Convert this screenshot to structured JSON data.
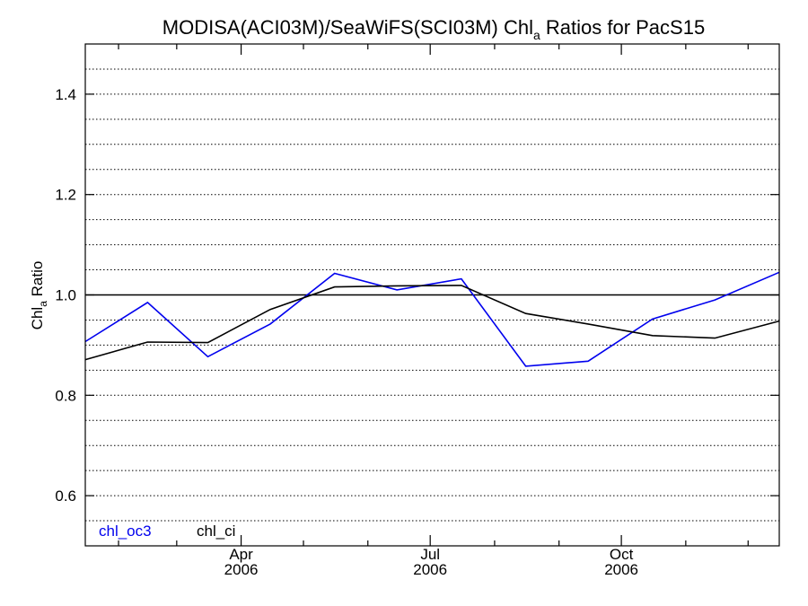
{
  "chart_data": {
    "type": "line",
    "title": {
      "prefix": "MODISA(ACI03M)/SeaWiFS(SCI03M)  Chl",
      "subscript": "a",
      "suffix": " Ratios for PacS15"
    },
    "ylabel": {
      "prefix": "Chl",
      "subscript": "a",
      "suffix": " Ratio"
    },
    "xlabel": "",
    "ylim": [
      0.5,
      1.5
    ],
    "xlim": [
      "2006-01-16",
      "2006-12-16"
    ],
    "y_ticks": [
      {
        "value": 0.6,
        "label": "0.6"
      },
      {
        "value": 0.8,
        "label": "0.8"
      },
      {
        "value": 1.0,
        "label": "1.0"
      },
      {
        "value": 1.2,
        "label": "1.2"
      },
      {
        "value": 1.4,
        "label": "1.4"
      }
    ],
    "y_grid_step": 0.05,
    "grid": "horizontal-dotted",
    "reference_line": 1.0,
    "x_major_ticks": [
      {
        "date": "2006-04-01",
        "label": "Apr",
        "year": "2006"
      },
      {
        "date": "2006-07-01",
        "label": "Jul",
        "year": "2006"
      },
      {
        "date": "2006-10-01",
        "label": "Oct",
        "year": "2006"
      }
    ],
    "x_minor_ticks": [
      "2006-02-01",
      "2006-03-01",
      "2006-05-01",
      "2006-06-01",
      "2006-08-01",
      "2006-09-01",
      "2006-11-01",
      "2006-12-01"
    ],
    "legend_placement": "bottom-left",
    "series": [
      {
        "name": "chl_oc3",
        "color": "#0000ee",
        "x": [
          "2006-01-16",
          "2006-02-15",
          "2006-03-16",
          "2006-04-15",
          "2006-05-16",
          "2006-06-15",
          "2006-07-16",
          "2006-08-16",
          "2006-09-15",
          "2006-10-16",
          "2006-11-15",
          "2006-12-16"
        ],
        "y": [
          0.907,
          0.985,
          0.877,
          0.942,
          1.043,
          1.01,
          1.032,
          0.858,
          0.868,
          0.952,
          0.99,
          1.045
        ]
      },
      {
        "name": "chl_ci",
        "color": "#000000",
        "x": [
          "2006-01-16",
          "2006-02-15",
          "2006-03-16",
          "2006-04-15",
          "2006-05-16",
          "2006-06-15",
          "2006-07-16",
          "2006-08-16",
          "2006-09-15",
          "2006-10-16",
          "2006-11-15",
          "2006-12-16"
        ],
        "y": [
          0.871,
          0.906,
          0.905,
          0.971,
          1.016,
          1.018,
          1.019,
          0.963,
          0.942,
          0.919,
          0.914,
          0.948
        ]
      }
    ]
  }
}
